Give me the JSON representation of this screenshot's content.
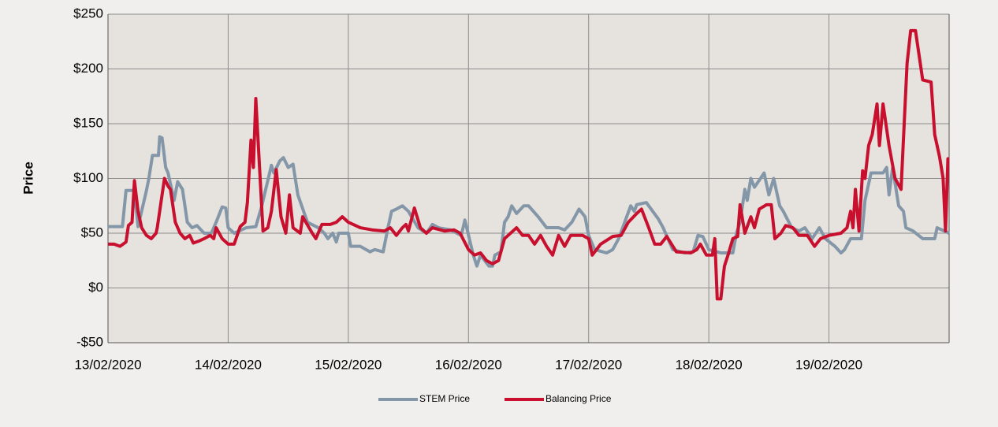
{
  "chart_data": {
    "type": "line",
    "y_label": "Price",
    "xlim": [
      0,
      7
    ],
    "xticks": [
      {
        "value": 0,
        "label": "13/02/2020"
      },
      {
        "value": 1,
        "label": "14/02/2020"
      },
      {
        "value": 2,
        "label": "15/02/2020"
      },
      {
        "value": 3,
        "label": "16/02/2020"
      },
      {
        "value": 4,
        "label": "17/02/2020"
      },
      {
        "value": 5,
        "label": "18/02/2020"
      },
      {
        "value": 6,
        "label": "19/02/2020"
      }
    ],
    "ylim": [
      -50,
      250
    ],
    "yticks": [
      {
        "value": -50,
        "label": "-$50"
      },
      {
        "value": 0,
        "label": "$0"
      },
      {
        "value": 50,
        "label": "$50"
      },
      {
        "value": 100,
        "label": "$100"
      },
      {
        "value": 150,
        "label": "$150"
      },
      {
        "value": 200,
        "label": "$200"
      },
      {
        "value": 250,
        "label": "$250"
      }
    ],
    "grid": true,
    "legend": "bottom",
    "series": [
      {
        "name": "STEM Price",
        "color": "#8497a8",
        "x": [
          0,
          0.12,
          0.15,
          0.22,
          0.25,
          0.32,
          0.34,
          0.37,
          0.42,
          0.43,
          0.45,
          0.48,
          0.5,
          0.55,
          0.58,
          0.62,
          0.66,
          0.7,
          0.74,
          0.8,
          0.86,
          0.9,
          0.95,
          0.98,
          1.0,
          1.05,
          1.15,
          1.23,
          1.28,
          1.36,
          1.38,
          1.43,
          1.46,
          1.5,
          1.54,
          1.58,
          1.66,
          1.75,
          1.8,
          1.83,
          1.87,
          1.9,
          1.92,
          2.0,
          2.02,
          2.1,
          2.18,
          2.22,
          2.29,
          2.33,
          2.36,
          2.4,
          2.45,
          2.5,
          2.58,
          2.65,
          2.7,
          2.75,
          2.85,
          2.94,
          2.97,
          3.04,
          3.07,
          3.1,
          3.17,
          3.2,
          3.22,
          3.27,
          3.3,
          3.33,
          3.36,
          3.4,
          3.46,
          3.5,
          3.58,
          3.65,
          3.75,
          3.8,
          3.86,
          3.92,
          3.97,
          4.0,
          4.05,
          4.15,
          4.2,
          4.25,
          4.3,
          4.35,
          4.38,
          4.4,
          4.48,
          4.52,
          4.58,
          4.62,
          4.66,
          4.7,
          4.8,
          4.87,
          4.91,
          4.95,
          5.0,
          5.1,
          5.2,
          5.23,
          5.26,
          5.3,
          5.32,
          5.35,
          5.38,
          5.43,
          5.46,
          5.5,
          5.54,
          5.59,
          5.62,
          5.69,
          5.75,
          5.8,
          5.86,
          5.92,
          5.97,
          6.05,
          6.1,
          6.13,
          6.18,
          6.27,
          6.3,
          6.35,
          6.45,
          6.48,
          6.5,
          6.53,
          6.58,
          6.62,
          6.64,
          6.7,
          6.78,
          6.88,
          6.9,
          7.0
        ],
        "values": [
          56,
          56,
          89,
          89,
          56,
          89,
          100,
          121,
          121,
          138,
          137,
          110,
          105,
          80,
          97,
          90,
          60,
          55,
          57,
          50,
          50,
          60,
          74,
          73,
          55,
          50,
          55,
          56,
          75,
          112,
          105,
          116,
          119,
          110,
          113,
          85,
          60,
          55,
          50,
          45,
          50,
          42,
          50,
          50,
          38,
          38,
          33,
          35,
          33,
          55,
          70,
          72,
          75,
          70,
          55,
          50,
          58,
          55,
          53,
          48,
          62,
          30,
          20,
          30,
          20,
          20,
          30,
          33,
          60,
          65,
          75,
          68,
          75,
          75,
          65,
          55,
          55,
          53,
          60,
          72,
          65,
          48,
          35,
          32,
          35,
          45,
          60,
          75,
          70,
          76,
          78,
          72,
          63,
          55,
          45,
          35,
          32,
          33,
          48,
          47,
          35,
          32,
          32,
          50,
          60,
          90,
          80,
          100,
          92,
          100,
          105,
          85,
          100,
          75,
          70,
          55,
          52,
          55,
          45,
          55,
          45,
          38,
          32,
          35,
          45,
          45,
          80,
          105,
          105,
          110,
          85,
          110,
          75,
          70,
          55,
          52,
          45,
          45,
          55,
          50
        ]
      },
      {
        "name": "Balancing Price",
        "color": "#c8102e",
        "x": [
          0,
          0.05,
          0.1,
          0.15,
          0.17,
          0.2,
          0.22,
          0.25,
          0.28,
          0.32,
          0.36,
          0.4,
          0.41,
          0.47,
          0.5,
          0.52,
          0.56,
          0.6,
          0.64,
          0.68,
          0.71,
          0.76,
          0.8,
          0.85,
          0.88,
          0.9,
          0.95,
          1.0,
          1.05,
          1.1,
          1.14,
          1.16,
          1.19,
          1.21,
          1.23,
          1.29,
          1.33,
          1.36,
          1.4,
          1.44,
          1.48,
          1.51,
          1.54,
          1.6,
          1.62,
          1.7,
          1.73,
          1.78,
          1.85,
          1.9,
          1.95,
          2.0,
          2.1,
          2.2,
          2.3,
          2.35,
          2.4,
          2.45,
          2.48,
          2.5,
          2.55,
          2.6,
          2.65,
          2.7,
          2.8,
          2.88,
          2.93,
          3.0,
          3.05,
          3.1,
          3.15,
          3.2,
          3.25,
          3.3,
          3.4,
          3.45,
          3.5,
          3.55,
          3.6,
          3.65,
          3.7,
          3.75,
          3.8,
          3.85,
          3.95,
          4.0,
          4.03,
          4.1,
          4.2,
          4.27,
          4.33,
          4.4,
          4.44,
          4.5,
          4.55,
          4.6,
          4.65,
          4.73,
          4.85,
          4.9,
          4.93,
          4.98,
          5.03,
          5.05,
          5.07,
          5.1,
          5.13,
          5.16,
          5.2,
          5.24,
          5.26,
          5.3,
          5.35,
          5.38,
          5.42,
          5.48,
          5.52,
          5.55,
          5.6,
          5.64,
          5.7,
          5.75,
          5.82,
          5.88,
          5.93,
          6.0,
          6.1,
          6.15,
          6.18,
          6.2,
          6.22,
          6.25,
          6.28,
          6.3,
          6.33,
          6.36,
          6.4,
          6.42,
          6.45,
          6.5,
          6.55,
          6.6,
          6.65,
          6.68,
          6.72,
          6.78,
          6.85,
          6.88,
          6.92,
          6.95,
          6.97,
          6.99,
          7.0
        ],
        "values": [
          40,
          40,
          38,
          42,
          57,
          60,
          98,
          70,
          55,
          48,
          45,
          50,
          55,
          100,
          93,
          90,
          60,
          50,
          45,
          48,
          41,
          43,
          45,
          48,
          45,
          55,
          45,
          40,
          40,
          56,
          60,
          78,
          135,
          110,
          173,
          52,
          55,
          70,
          108,
          65,
          50,
          85,
          55,
          50,
          65,
          50,
          45,
          58,
          58,
          60,
          65,
          60,
          55,
          53,
          52,
          55,
          48,
          55,
          58,
          52,
          73,
          55,
          50,
          55,
          52,
          53,
          50,
          35,
          30,
          32,
          25,
          22,
          25,
          45,
          55,
          48,
          48,
          40,
          48,
          38,
          30,
          48,
          38,
          48,
          48,
          45,
          30,
          40,
          47,
          48,
          60,
          68,
          72,
          55,
          40,
          40,
          47,
          33,
          32,
          35,
          40,
          30,
          30,
          45,
          -10,
          -10,
          20,
          30,
          45,
          47,
          76,
          50,
          65,
          55,
          72,
          76,
          76,
          45,
          50,
          57,
          55,
          48,
          48,
          38,
          45,
          48,
          50,
          55,
          70,
          55,
          90,
          52,
          107,
          100,
          130,
          140,
          168,
          130,
          168,
          130,
          100,
          90,
          205,
          235,
          235,
          190,
          188,
          140,
          120,
          100,
          52,
          118,
          118
        ]
      }
    ]
  }
}
